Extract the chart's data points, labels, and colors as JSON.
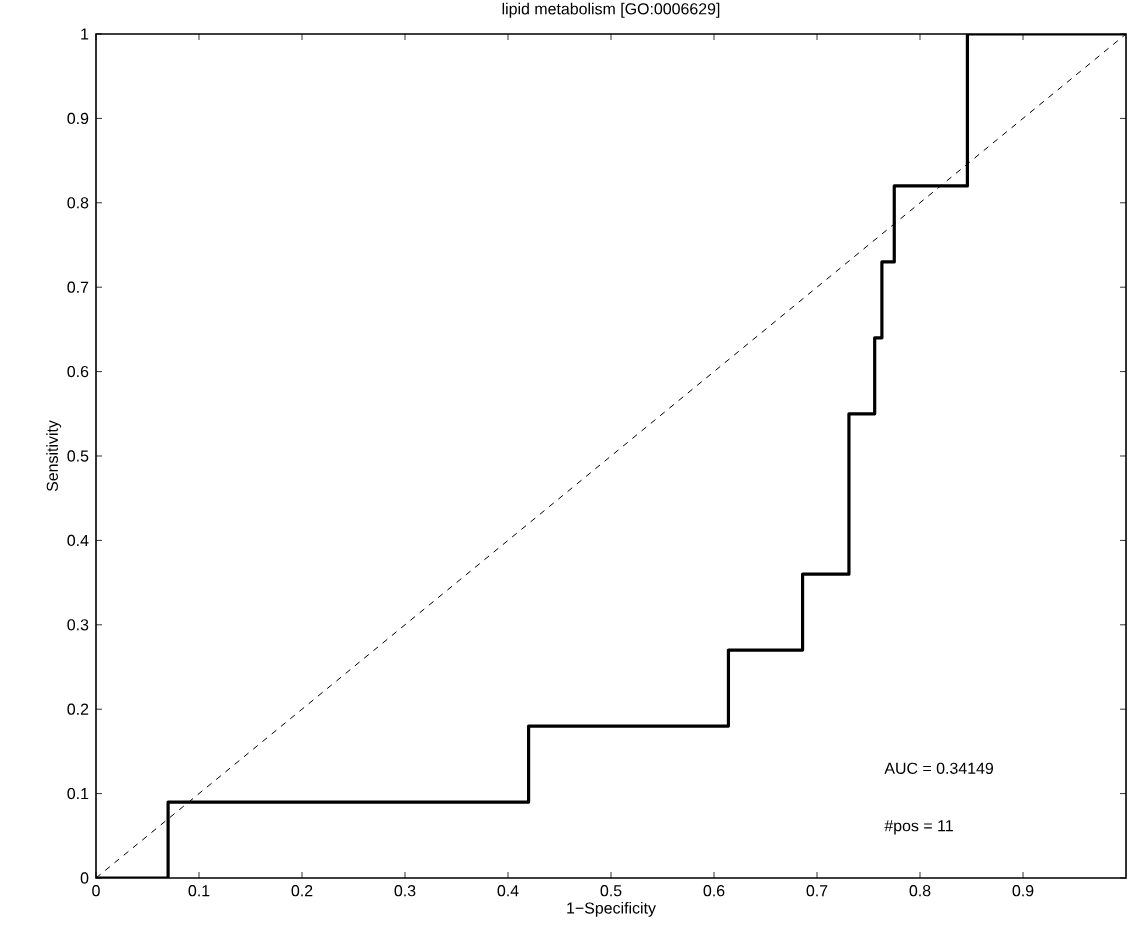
{
  "chart_data": {
    "type": "step",
    "title": "lipid metabolism [GO:0006629]",
    "xlabel": "1−Specificity",
    "ylabel": "Sensitivity",
    "xlim": [
      0,
      1
    ],
    "ylim": [
      0,
      1
    ],
    "xticks": [
      0,
      0.1,
      0.2,
      0.3,
      0.4,
      0.5,
      0.6,
      0.7,
      0.8,
      0.9
    ],
    "yticks": [
      0,
      0.1,
      0.2,
      0.3,
      0.4,
      0.5,
      0.6,
      0.7,
      0.8,
      0.9,
      1
    ],
    "grid": false,
    "series": [
      {
        "color": "#000000",
        "line_style": "solid",
        "x": [
          0,
          0.07,
          0.42,
          0.614,
          0.686,
          0.731,
          0.756,
          0.763,
          0.775,
          0.846,
          1
        ],
        "values": [
          0,
          0.09,
          0.18,
          0.27,
          0.36,
          0.55,
          0.64,
          0.73,
          0.82,
          1,
          1
        ]
      },
      {
        "type": "line",
        "color": "#000000",
        "line_style": "dashed",
        "x": [
          0,
          1
        ],
        "values": [
          0,
          1
        ]
      }
    ],
    "annotations": [
      "AUC = 0.34149",
      "#pos = 11"
    ]
  }
}
